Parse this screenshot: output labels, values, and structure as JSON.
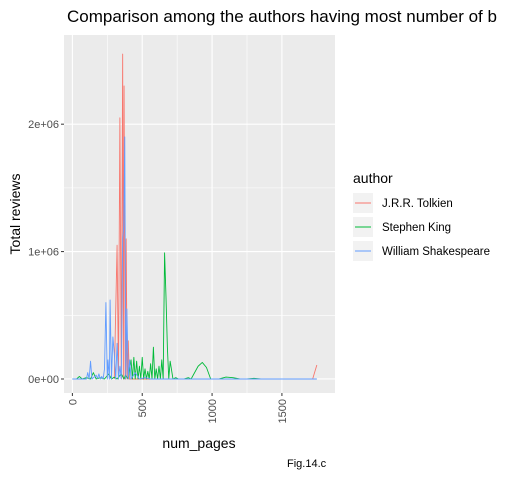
{
  "caption": "Fig.14.c",
  "chart_data": {
    "type": "line",
    "title": "Comparison among the authors having most number of b",
    "xlabel": "num_pages",
    "ylabel": "Total reviews",
    "xlim": [
      -60,
      1880
    ],
    "ylim": [
      -110000,
      2700000
    ],
    "x_ticks": [
      0,
      500,
      1000,
      1500
    ],
    "x_tick_labels": [
      "0",
      "500",
      "1000",
      "1500"
    ],
    "y_ticks": [
      0,
      1000000,
      2000000
    ],
    "y_tick_labels": [
      "0e+00",
      "1e+06",
      "2e+06"
    ],
    "grid": true,
    "legend": {
      "title": "author",
      "position": "right"
    },
    "series": [
      {
        "name": "J.R.R. Tolkien",
        "color": "#F8766D",
        "points": [
          [
            300,
            0
          ],
          [
            320,
            1050000
          ],
          [
            330,
            0
          ],
          [
            340,
            2050000
          ],
          [
            350,
            0
          ],
          [
            360,
            2550000
          ],
          [
            365,
            0
          ],
          [
            370,
            2300000
          ],
          [
            378,
            0
          ],
          [
            385,
            1100000
          ],
          [
            392,
            0
          ],
          [
            400,
            300000
          ],
          [
            408,
            0
          ],
          [
            420,
            0
          ],
          [
            1720,
            0
          ],
          [
            1750,
            110000
          ]
        ]
      },
      {
        "name": "Stephen King",
        "color": "#00BA38",
        "points": [
          [
            0,
            0
          ],
          [
            30,
            0
          ],
          [
            50,
            20000
          ],
          [
            70,
            0
          ],
          [
            100,
            10000
          ],
          [
            130,
            0
          ],
          [
            150,
            50000
          ],
          [
            170,
            0
          ],
          [
            200,
            10000
          ],
          [
            230,
            0
          ],
          [
            260,
            40000
          ],
          [
            280,
            0
          ],
          [
            300,
            15000
          ],
          [
            320,
            0
          ],
          [
            350,
            40000
          ],
          [
            370,
            0
          ],
          [
            380,
            30000
          ],
          [
            400,
            0
          ],
          [
            420,
            150000
          ],
          [
            430,
            0
          ],
          [
            440,
            170000
          ],
          [
            450,
            0
          ],
          [
            460,
            140000
          ],
          [
            470,
            0
          ],
          [
            480,
            100000
          ],
          [
            490,
            0
          ],
          [
            500,
            170000
          ],
          [
            510,
            0
          ],
          [
            520,
            80000
          ],
          [
            530,
            0
          ],
          [
            540,
            60000
          ],
          [
            550,
            0
          ],
          [
            560,
            120000
          ],
          [
            570,
            0
          ],
          [
            580,
            250000
          ],
          [
            590,
            0
          ],
          [
            600,
            80000
          ],
          [
            610,
            0
          ],
          [
            620,
            100000
          ],
          [
            630,
            0
          ],
          [
            640,
            150000
          ],
          [
            650,
            0
          ],
          [
            660,
            990000
          ],
          [
            670,
            650000
          ],
          [
            680,
            250000
          ],
          [
            690,
            0
          ],
          [
            700,
            140000
          ],
          [
            720,
            0
          ],
          [
            740,
            10000
          ],
          [
            760,
            0
          ],
          [
            800,
            0
          ],
          [
            830,
            10000
          ],
          [
            850,
            0
          ],
          [
            900,
            100000
          ],
          [
            930,
            130000
          ],
          [
            960,
            90000
          ],
          [
            990,
            0
          ],
          [
            1050,
            0
          ],
          [
            1100,
            15000
          ],
          [
            1150,
            10000
          ],
          [
            1200,
            0
          ],
          [
            1250,
            0
          ],
          [
            1300,
            5000
          ],
          [
            1350,
            0
          ],
          [
            1700,
            0
          ]
        ]
      },
      {
        "name": "William Shakespeare",
        "color": "#619CFF",
        "points": [
          [
            0,
            0
          ],
          [
            100,
            0
          ],
          [
            110,
            50000
          ],
          [
            120,
            0
          ],
          [
            130,
            140000
          ],
          [
            140,
            0
          ],
          [
            160,
            20000
          ],
          [
            170,
            30000
          ],
          [
            180,
            5000
          ],
          [
            190,
            40000
          ],
          [
            200,
            0
          ],
          [
            210,
            20000
          ],
          [
            220,
            0
          ],
          [
            230,
            80000
          ],
          [
            240,
            600000
          ],
          [
            250,
            0
          ],
          [
            255,
            150000
          ],
          [
            265,
            0
          ],
          [
            270,
            620000
          ],
          [
            280,
            0
          ],
          [
            290,
            330000
          ],
          [
            300,
            200000
          ],
          [
            310,
            0
          ],
          [
            320,
            280000
          ],
          [
            330,
            0
          ],
          [
            340,
            100000
          ],
          [
            350,
            0
          ],
          [
            360,
            1100000
          ],
          [
            368,
            1200000
          ],
          [
            375,
            1900000
          ],
          [
            382,
            0
          ],
          [
            390,
            550000
          ],
          [
            400,
            0
          ],
          [
            410,
            150000
          ],
          [
            420,
            0
          ],
          [
            450,
            50000
          ],
          [
            480,
            0
          ],
          [
            520,
            10000
          ],
          [
            560,
            0
          ],
          [
            600,
            0
          ],
          [
            1750,
            0
          ]
        ]
      }
    ]
  }
}
